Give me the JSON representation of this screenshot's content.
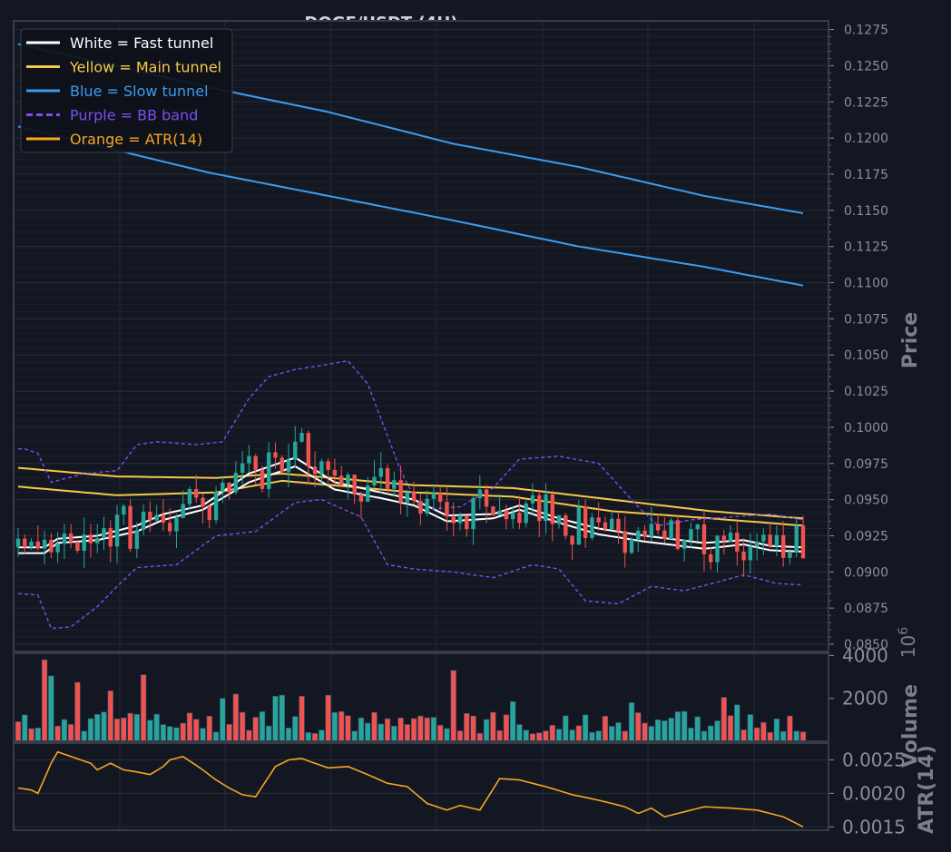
{
  "chart_data": {
    "type": "line",
    "title": "DOGE/USDT (4H)",
    "price_panel": {
      "ylabel": "Price",
      "ylim": [
        0.0845,
        0.1281
      ],
      "ticks": [
        "0.0850",
        "0.0875",
        "0.0900",
        "0.0925",
        "0.0950",
        "0.0975",
        "0.1000",
        "0.1025",
        "0.1050",
        "0.1075",
        "0.1100",
        "0.1125",
        "0.1150",
        "0.1175",
        "0.1200",
        "0.1225",
        "0.1250",
        "0.1275"
      ],
      "grid": true,
      "legend_position": "top-left",
      "legend": [
        {
          "label": "White = Fast tunnel",
          "color": "#ffffff",
          "dash": false
        },
        {
          "label": "Yellow = Main tunnel",
          "color": "#f7c948",
          "dash": false
        },
        {
          "label": "Blue = Slow tunnel",
          "color": "#3d9cf0",
          "dash": false
        },
        {
          "label": "Purple = BB band",
          "color": "#7b4ff0",
          "dash": true
        },
        {
          "label": "Orange = ATR(14)",
          "color": "#f5a623",
          "dash": false
        }
      ],
      "candle_count": 120,
      "candle_colors": {
        "up": "#26a69a",
        "down": "#ef5350"
      },
      "series": [
        {
          "name": "Blue = Slow tunnel",
          "color": "#3d9cf0",
          "anchors": [
            [
              0,
              0.1265
            ],
            [
              29,
              0.1235
            ],
            [
              47,
              0.1218
            ],
            [
              66,
              0.1196
            ],
            [
              85,
              0.118
            ],
            [
              104,
              0.116
            ],
            [
              119,
              0.1148
            ]
          ]
        },
        {
          "name": "Blue = Slow tunnel",
          "color": "#3d9cf0",
          "anchors": [
            [
              0,
              0.1208
            ],
            [
              29,
              0.1176
            ],
            [
              47,
              0.116
            ],
            [
              66,
              0.1143
            ],
            [
              85,
              0.1125
            ],
            [
              104,
              0.1111
            ],
            [
              119,
              0.1098
            ]
          ]
        },
        {
          "name": "Yellow = Main tunnel",
          "color": "#f7c948",
          "anchors": [
            [
              0,
              0.0972
            ],
            [
              15,
              0.0966
            ],
            [
              30,
              0.0965
            ],
            [
              40,
              0.0968
            ],
            [
              60,
              0.096
            ],
            [
              75,
              0.0958
            ],
            [
              90,
              0.095
            ],
            [
              105,
              0.0942
            ],
            [
              119,
              0.0937
            ]
          ]
        },
        {
          "name": "Yellow = Main tunnel",
          "color": "#f7c948",
          "anchors": [
            [
              0,
              0.0959
            ],
            [
              15,
              0.0953
            ],
            [
              30,
              0.0955
            ],
            [
              40,
              0.0963
            ],
            [
              60,
              0.0955
            ],
            [
              75,
              0.0952
            ],
            [
              90,
              0.0942
            ],
            [
              105,
              0.0937
            ],
            [
              119,
              0.0932
            ]
          ]
        },
        {
          "name": "White = Fast tunnel",
          "color": "#ffffff",
          "anchors": [
            [
              0,
              0.0917
            ],
            [
              4,
              0.0917
            ],
            [
              6,
              0.0923
            ],
            [
              12,
              0.0925
            ],
            [
              18,
              0.0932
            ],
            [
              22,
              0.094
            ],
            [
              28,
              0.0946
            ],
            [
              35,
              0.0968
            ],
            [
              42,
              0.0979
            ],
            [
              48,
              0.0962
            ],
            [
              55,
              0.0955
            ],
            [
              60,
              0.095
            ],
            [
              65,
              0.0939
            ],
            [
              72,
              0.094
            ],
            [
              76,
              0.0946
            ],
            [
              82,
              0.0937
            ],
            [
              88,
              0.093
            ],
            [
              95,
              0.0925
            ],
            [
              104,
              0.092
            ],
            [
              110,
              0.0922
            ],
            [
              114,
              0.0918
            ],
            [
              119,
              0.0917
            ]
          ]
        },
        {
          "name": "White = Fast tunnel",
          "color": "#ffffff",
          "anchors": [
            [
              0,
              0.0913
            ],
            [
              4,
              0.0913
            ],
            [
              6,
              0.092
            ],
            [
              12,
              0.0922
            ],
            [
              18,
              0.0928
            ],
            [
              22,
              0.0936
            ],
            [
              28,
              0.0943
            ],
            [
              35,
              0.0962
            ],
            [
              42,
              0.0973
            ],
            [
              48,
              0.0957
            ],
            [
              55,
              0.0951
            ],
            [
              60,
              0.0946
            ],
            [
              65,
              0.0935
            ],
            [
              72,
              0.0937
            ],
            [
              76,
              0.0943
            ],
            [
              82,
              0.0934
            ],
            [
              88,
              0.0926
            ],
            [
              95,
              0.0921
            ],
            [
              104,
              0.0916
            ],
            [
              110,
              0.0919
            ],
            [
              114,
              0.0915
            ],
            [
              119,
              0.0914
            ]
          ]
        },
        {
          "name": "Purple = BB band",
          "color": "#7b4ff0",
          "dash": true,
          "anchors": [
            [
              0,
              0.0985
            ],
            [
              1,
              0.0985
            ],
            [
              3,
              0.0982
            ],
            [
              5,
              0.0962
            ],
            [
              10,
              0.0968
            ],
            [
              15,
              0.097
            ],
            [
              18,
              0.0988
            ],
            [
              21,
              0.099
            ],
            [
              27,
              0.0988
            ],
            [
              31,
              0.099
            ],
            [
              35,
              0.102
            ],
            [
              38,
              0.1035
            ],
            [
              42,
              0.104
            ],
            [
              45,
              0.1042
            ],
            [
              50,
              0.1046
            ],
            [
              53,
              0.103
            ],
            [
              58,
              0.097
            ],
            [
              61,
              0.0943
            ],
            [
              67,
              0.0945
            ],
            [
              72,
              0.0958
            ],
            [
              76,
              0.0978
            ],
            [
              82,
              0.098
            ],
            [
              88,
              0.0975
            ],
            [
              94,
              0.0945
            ],
            [
              97,
              0.0932
            ],
            [
              102,
              0.0936
            ],
            [
              108,
              0.0938
            ],
            [
              114,
              0.094
            ],
            [
              119,
              0.0936
            ]
          ]
        },
        {
          "name": "Purple = BB band",
          "color": "#7b4ff0",
          "dash": true,
          "anchors": [
            [
              0,
              0.0885
            ],
            [
              3,
              0.0884
            ],
            [
              5,
              0.0861
            ],
            [
              8,
              0.0862
            ],
            [
              12,
              0.0876
            ],
            [
              15,
              0.089
            ],
            [
              18,
              0.0903
            ],
            [
              24,
              0.0905
            ],
            [
              30,
              0.0925
            ],
            [
              36,
              0.0928
            ],
            [
              42,
              0.0948
            ],
            [
              46,
              0.095
            ],
            [
              52,
              0.0938
            ],
            [
              56,
              0.0905
            ],
            [
              60,
              0.0902
            ],
            [
              66,
              0.09
            ],
            [
              72,
              0.0896
            ],
            [
              78,
              0.0905
            ],
            [
              82,
              0.0902
            ],
            [
              86,
              0.088
            ],
            [
              91,
              0.0878
            ],
            [
              96,
              0.089
            ],
            [
              101,
              0.0887
            ],
            [
              106,
              0.0893
            ],
            [
              110,
              0.0898
            ],
            [
              115,
              0.0892
            ],
            [
              119,
              0.0891
            ]
          ]
        }
      ]
    },
    "volume_panel": {
      "ylabel": "Volume",
      "exponent": "10^6",
      "multiplier_base": "10",
      "multiplier_exp": "6",
      "ylim": [
        0,
        4100
      ],
      "ticks": [
        "2000",
        "4000"
      ],
      "spikes": [
        [
          4,
          3800
        ],
        [
          5,
          3050
        ],
        [
          9,
          2750
        ],
        [
          14,
          2350
        ],
        [
          19,
          3100
        ],
        [
          31,
          2000
        ],
        [
          33,
          2200
        ],
        [
          39,
          2100
        ],
        [
          40,
          2150
        ],
        [
          43,
          2100
        ],
        [
          47,
          2150
        ],
        [
          66,
          3300
        ],
        [
          75,
          1850
        ],
        [
          93,
          1800
        ],
        [
          107,
          2050
        ],
        [
          109,
          1700
        ]
      ]
    },
    "atr_panel": {
      "ylabel": "ATR(14)",
      "ylim": [
        0.00145,
        0.00275
      ],
      "ticks": [
        "0.0015",
        "0.0020",
        "0.0025"
      ],
      "series": [
        {
          "name": "Orange = ATR(14)",
          "color": "#f5a623",
          "anchors": [
            [
              0,
              0.00208
            ],
            [
              2,
              0.00205
            ],
            [
              3,
              0.002
            ],
            [
              5,
              0.00245
            ],
            [
              6,
              0.00262
            ],
            [
              8,
              0.00255
            ],
            [
              11,
              0.00245
            ],
            [
              12,
              0.00235
            ],
            [
              14,
              0.00245
            ],
            [
              16,
              0.00235
            ],
            [
              18,
              0.00232
            ],
            [
              20,
              0.00228
            ],
            [
              22,
              0.0024
            ],
            [
              23,
              0.0025
            ],
            [
              25,
              0.00255
            ],
            [
              28,
              0.00235
            ],
            [
              30,
              0.0022
            ],
            [
              32,
              0.00208
            ],
            [
              34,
              0.00198
            ],
            [
              36,
              0.00195
            ],
            [
              39,
              0.0024
            ],
            [
              41,
              0.0025
            ],
            [
              43,
              0.00252
            ],
            [
              45,
              0.00245
            ],
            [
              47,
              0.00238
            ],
            [
              50,
              0.0024
            ],
            [
              53,
              0.00228
            ],
            [
              56,
              0.00215
            ],
            [
              59,
              0.0021
            ],
            [
              62,
              0.00185
            ],
            [
              65,
              0.00175
            ],
            [
              67,
              0.00182
            ],
            [
              70,
              0.00175
            ],
            [
              73,
              0.00222
            ],
            [
              76,
              0.0022
            ],
            [
              80,
              0.0021
            ],
            [
              84,
              0.00198
            ],
            [
              87,
              0.00192
            ],
            [
              90,
              0.00185
            ],
            [
              92,
              0.0018
            ],
            [
              94,
              0.0017
            ],
            [
              96,
              0.00178
            ],
            [
              98,
              0.00165
            ],
            [
              100,
              0.0017
            ],
            [
              104,
              0.0018
            ],
            [
              108,
              0.00178
            ],
            [
              112,
              0.00175
            ],
            [
              116,
              0.00165
            ],
            [
              119,
              0.0015
            ]
          ]
        }
      ]
    }
  }
}
